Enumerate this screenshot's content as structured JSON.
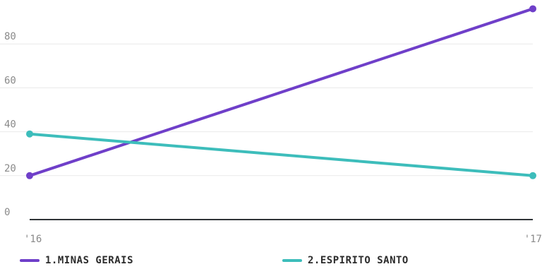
{
  "chart_data": {
    "type": "line",
    "x": [
      "'16",
      "'17"
    ],
    "ylim": [
      0,
      100
    ],
    "yticks": [
      0,
      20,
      40,
      60,
      80
    ],
    "grid": true,
    "legend_placement": "bottom",
    "series": [
      {
        "name": "1.MINAS GERAIS",
        "values": [
          20,
          96
        ],
        "color": "#6f3fc9"
      },
      {
        "name": "2.ESPIRITO SANTO",
        "values": [
          39,
          20
        ],
        "color": "#3dbdbb"
      }
    ]
  }
}
